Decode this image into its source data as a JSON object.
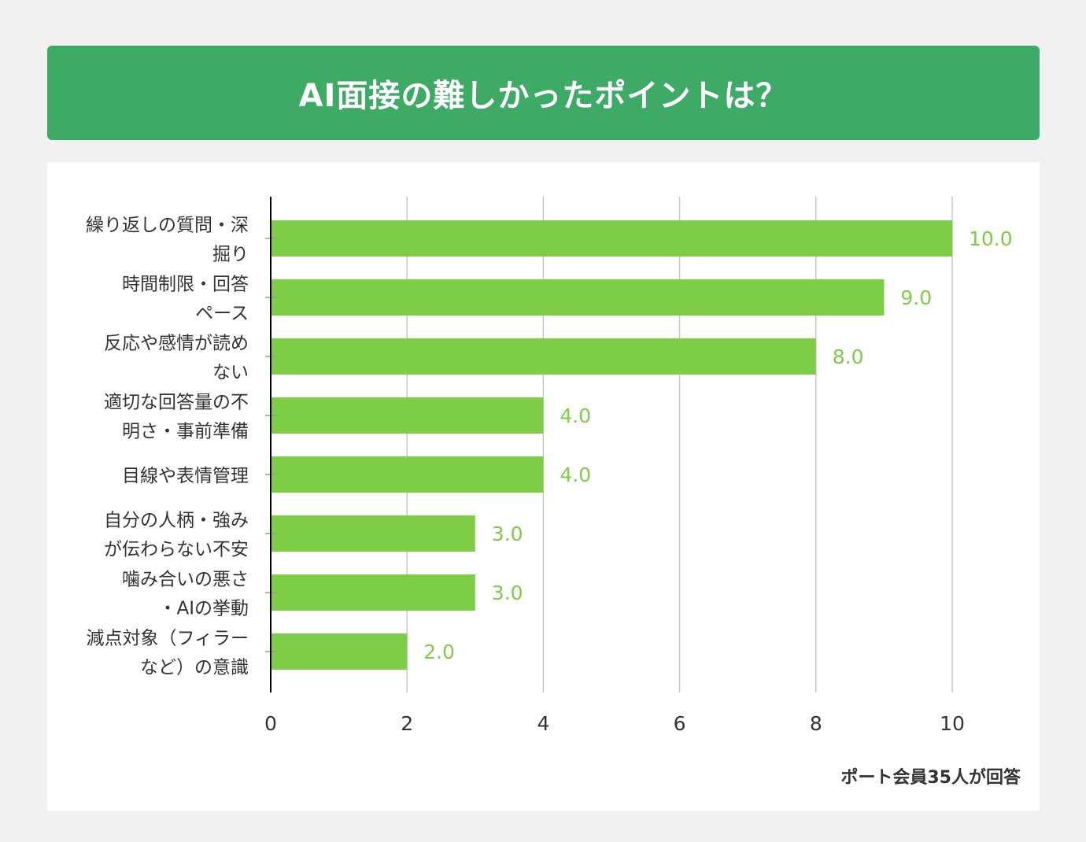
{
  "header": {
    "title": "AI面接の難しかったポイントは？"
  },
  "footer": {
    "note": "ポート会員35人が回答"
  },
  "colors": {
    "banner": "#3dab66",
    "bar": "#7ecd46",
    "value_label": "#7ecd46",
    "grid": "#c8c8c8",
    "axis": "#000000",
    "text": "#333333"
  },
  "chart_data": {
    "type": "bar",
    "orientation": "horizontal",
    "categories": [
      [
        "繰り返しの質問・深",
        "掘り"
      ],
      [
        "時間制限・回答",
        "ペース"
      ],
      [
        "反応や感情が読め",
        "ない"
      ],
      [
        "適切な回答量の不",
        "明さ・事前準備"
      ],
      [
        "目線や表情管理"
      ],
      [
        "自分の人柄・強み",
        "が伝わらない不安"
      ],
      [
        "噛み合いの悪さ",
        "・AIの挙動"
      ],
      [
        "減点対象（フィラー",
        "など）の意識"
      ]
    ],
    "values": [
      10,
      9,
      8,
      4,
      4,
      3,
      3,
      2
    ],
    "value_labels": [
      "10.0",
      "9.0",
      "8.0",
      "4.0",
      "4.0",
      "3.0",
      "3.0",
      "2.0"
    ],
    "xlim": [
      0,
      10
    ],
    "xticks": [
      "0",
      "2",
      "4",
      "6",
      "8",
      "10"
    ],
    "grid": true
  }
}
